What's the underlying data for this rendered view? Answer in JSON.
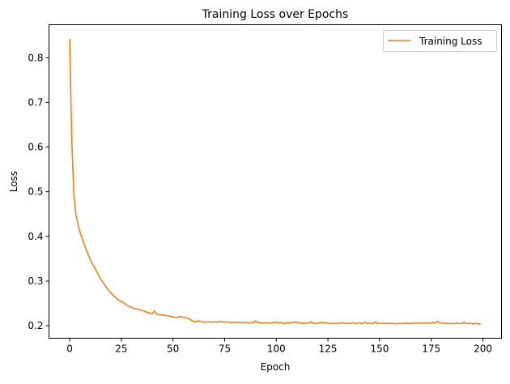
{
  "chart_data": {
    "type": "line",
    "title": "Training Loss over Epochs",
    "xlabel": "Epoch",
    "ylabel": "Loss",
    "xlim": [
      -10,
      209
    ],
    "ylim": [
      0.172,
      0.874
    ],
    "xticks": [
      0,
      25,
      50,
      75,
      100,
      125,
      150,
      175,
      200
    ],
    "yticks": [
      0.2,
      0.3,
      0.4,
      0.5,
      0.6,
      0.7,
      0.8
    ],
    "grid": false,
    "legend_position": "top-right",
    "series": [
      {
        "name": "Training Loss",
        "color": "#ff7f0e",
        "values": [
          0.842,
          0.62,
          0.495,
          0.45,
          0.428,
          0.41,
          0.396,
          0.383,
          0.37,
          0.358,
          0.348,
          0.339,
          0.33,
          0.322,
          0.313,
          0.305,
          0.298,
          0.291,
          0.284,
          0.278,
          0.273,
          0.268,
          0.264,
          0.26,
          0.256,
          0.254,
          0.252,
          0.248,
          0.245,
          0.243,
          0.241,
          0.239,
          0.238,
          0.237,
          0.236,
          0.234,
          0.233,
          0.231,
          0.229,
          0.228,
          0.227,
          0.233,
          0.226,
          0.225,
          0.225,
          0.224,
          0.223,
          0.223,
          0.222,
          0.221,
          0.22,
          0.219,
          0.218,
          0.221,
          0.22,
          0.219,
          0.218,
          0.217,
          0.215,
          0.212,
          0.209,
          0.209,
          0.211,
          0.21,
          0.209,
          0.208,
          0.208,
          0.209,
          0.208,
          0.208,
          0.209,
          0.208,
          0.208,
          0.21,
          0.208,
          0.208,
          0.209,
          0.208,
          0.207,
          0.208,
          0.208,
          0.207,
          0.208,
          0.207,
          0.207,
          0.208,
          0.207,
          0.206,
          0.207,
          0.207,
          0.211,
          0.207,
          0.207,
          0.206,
          0.207,
          0.207,
          0.206,
          0.206,
          0.207,
          0.207,
          0.208,
          0.206,
          0.207,
          0.207,
          0.204,
          0.207,
          0.206,
          0.207,
          0.207,
          0.208,
          0.208,
          0.206,
          0.206,
          0.205,
          0.206,
          0.206,
          0.206,
          0.209,
          0.205,
          0.205,
          0.206,
          0.206,
          0.208,
          0.206,
          0.207,
          0.206,
          0.205,
          0.205,
          0.205,
          0.205,
          0.205,
          0.207,
          0.206,
          0.206,
          0.205,
          0.205,
          0.205,
          0.207,
          0.205,
          0.205,
          0.206,
          0.205,
          0.205,
          0.208,
          0.205,
          0.205,
          0.206,
          0.205,
          0.209,
          0.205,
          0.205,
          0.206,
          0.205,
          0.205,
          0.206,
          0.205,
          0.205,
          0.205,
          0.204,
          0.205,
          0.205,
          0.205,
          0.205,
          0.206,
          0.205,
          0.205,
          0.205,
          0.206,
          0.206,
          0.205,
          0.206,
          0.206,
          0.206,
          0.206,
          0.205,
          0.207,
          0.207,
          0.206,
          0.21,
          0.206,
          0.206,
          0.206,
          0.205,
          0.205,
          0.205,
          0.205,
          0.204,
          0.206,
          0.205,
          0.205,
          0.205,
          0.208,
          0.205,
          0.205,
          0.206,
          0.204,
          0.205,
          0.205,
          0.204,
          0.204
        ]
      }
    ]
  }
}
